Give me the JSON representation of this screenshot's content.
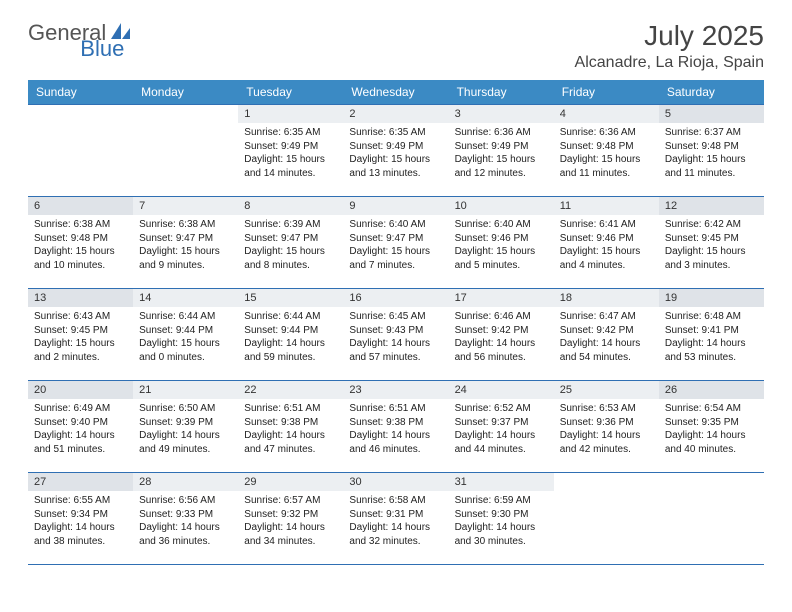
{
  "logo": {
    "word1": "General",
    "word2": "Blue"
  },
  "title": "July 2025",
  "location": "Alcanadre, La Rioja, Spain",
  "headers": [
    "Sunday",
    "Monday",
    "Tuesday",
    "Wednesday",
    "Thursday",
    "Friday",
    "Saturday"
  ],
  "colors": {
    "header_bg": "#3b8ac4",
    "border": "#2f6fb3",
    "weekday_daybar": "#eceff2",
    "weekend_daybar": "#dfe3e8"
  },
  "weeks": [
    [
      null,
      null,
      {
        "num": "1",
        "sunrise": "Sunrise: 6:35 AM",
        "sunset": "Sunset: 9:49 PM",
        "daylight": "Daylight: 15 hours and 14 minutes."
      },
      {
        "num": "2",
        "sunrise": "Sunrise: 6:35 AM",
        "sunset": "Sunset: 9:49 PM",
        "daylight": "Daylight: 15 hours and 13 minutes."
      },
      {
        "num": "3",
        "sunrise": "Sunrise: 6:36 AM",
        "sunset": "Sunset: 9:49 PM",
        "daylight": "Daylight: 15 hours and 12 minutes."
      },
      {
        "num": "4",
        "sunrise": "Sunrise: 6:36 AM",
        "sunset": "Sunset: 9:48 PM",
        "daylight": "Daylight: 15 hours and 11 minutes."
      },
      {
        "num": "5",
        "sunrise": "Sunrise: 6:37 AM",
        "sunset": "Sunset: 9:48 PM",
        "daylight": "Daylight: 15 hours and 11 minutes."
      }
    ],
    [
      {
        "num": "6",
        "sunrise": "Sunrise: 6:38 AM",
        "sunset": "Sunset: 9:48 PM",
        "daylight": "Daylight: 15 hours and 10 minutes."
      },
      {
        "num": "7",
        "sunrise": "Sunrise: 6:38 AM",
        "sunset": "Sunset: 9:47 PM",
        "daylight": "Daylight: 15 hours and 9 minutes."
      },
      {
        "num": "8",
        "sunrise": "Sunrise: 6:39 AM",
        "sunset": "Sunset: 9:47 PM",
        "daylight": "Daylight: 15 hours and 8 minutes."
      },
      {
        "num": "9",
        "sunrise": "Sunrise: 6:40 AM",
        "sunset": "Sunset: 9:47 PM",
        "daylight": "Daylight: 15 hours and 7 minutes."
      },
      {
        "num": "10",
        "sunrise": "Sunrise: 6:40 AM",
        "sunset": "Sunset: 9:46 PM",
        "daylight": "Daylight: 15 hours and 5 minutes."
      },
      {
        "num": "11",
        "sunrise": "Sunrise: 6:41 AM",
        "sunset": "Sunset: 9:46 PM",
        "daylight": "Daylight: 15 hours and 4 minutes."
      },
      {
        "num": "12",
        "sunrise": "Sunrise: 6:42 AM",
        "sunset": "Sunset: 9:45 PM",
        "daylight": "Daylight: 15 hours and 3 minutes."
      }
    ],
    [
      {
        "num": "13",
        "sunrise": "Sunrise: 6:43 AM",
        "sunset": "Sunset: 9:45 PM",
        "daylight": "Daylight: 15 hours and 2 minutes."
      },
      {
        "num": "14",
        "sunrise": "Sunrise: 6:44 AM",
        "sunset": "Sunset: 9:44 PM",
        "daylight": "Daylight: 15 hours and 0 minutes."
      },
      {
        "num": "15",
        "sunrise": "Sunrise: 6:44 AM",
        "sunset": "Sunset: 9:44 PM",
        "daylight": "Daylight: 14 hours and 59 minutes."
      },
      {
        "num": "16",
        "sunrise": "Sunrise: 6:45 AM",
        "sunset": "Sunset: 9:43 PM",
        "daylight": "Daylight: 14 hours and 57 minutes."
      },
      {
        "num": "17",
        "sunrise": "Sunrise: 6:46 AM",
        "sunset": "Sunset: 9:42 PM",
        "daylight": "Daylight: 14 hours and 56 minutes."
      },
      {
        "num": "18",
        "sunrise": "Sunrise: 6:47 AM",
        "sunset": "Sunset: 9:42 PM",
        "daylight": "Daylight: 14 hours and 54 minutes."
      },
      {
        "num": "19",
        "sunrise": "Sunrise: 6:48 AM",
        "sunset": "Sunset: 9:41 PM",
        "daylight": "Daylight: 14 hours and 53 minutes."
      }
    ],
    [
      {
        "num": "20",
        "sunrise": "Sunrise: 6:49 AM",
        "sunset": "Sunset: 9:40 PM",
        "daylight": "Daylight: 14 hours and 51 minutes."
      },
      {
        "num": "21",
        "sunrise": "Sunrise: 6:50 AM",
        "sunset": "Sunset: 9:39 PM",
        "daylight": "Daylight: 14 hours and 49 minutes."
      },
      {
        "num": "22",
        "sunrise": "Sunrise: 6:51 AM",
        "sunset": "Sunset: 9:38 PM",
        "daylight": "Daylight: 14 hours and 47 minutes."
      },
      {
        "num": "23",
        "sunrise": "Sunrise: 6:51 AM",
        "sunset": "Sunset: 9:38 PM",
        "daylight": "Daylight: 14 hours and 46 minutes."
      },
      {
        "num": "24",
        "sunrise": "Sunrise: 6:52 AM",
        "sunset": "Sunset: 9:37 PM",
        "daylight": "Daylight: 14 hours and 44 minutes."
      },
      {
        "num": "25",
        "sunrise": "Sunrise: 6:53 AM",
        "sunset": "Sunset: 9:36 PM",
        "daylight": "Daylight: 14 hours and 42 minutes."
      },
      {
        "num": "26",
        "sunrise": "Sunrise: 6:54 AM",
        "sunset": "Sunset: 9:35 PM",
        "daylight": "Daylight: 14 hours and 40 minutes."
      }
    ],
    [
      {
        "num": "27",
        "sunrise": "Sunrise: 6:55 AM",
        "sunset": "Sunset: 9:34 PM",
        "daylight": "Daylight: 14 hours and 38 minutes."
      },
      {
        "num": "28",
        "sunrise": "Sunrise: 6:56 AM",
        "sunset": "Sunset: 9:33 PM",
        "daylight": "Daylight: 14 hours and 36 minutes."
      },
      {
        "num": "29",
        "sunrise": "Sunrise: 6:57 AM",
        "sunset": "Sunset: 9:32 PM",
        "daylight": "Daylight: 14 hours and 34 minutes."
      },
      {
        "num": "30",
        "sunrise": "Sunrise: 6:58 AM",
        "sunset": "Sunset: 9:31 PM",
        "daylight": "Daylight: 14 hours and 32 minutes."
      },
      {
        "num": "31",
        "sunrise": "Sunrise: 6:59 AM",
        "sunset": "Sunset: 9:30 PM",
        "daylight": "Daylight: 14 hours and 30 minutes."
      },
      null,
      null
    ]
  ]
}
